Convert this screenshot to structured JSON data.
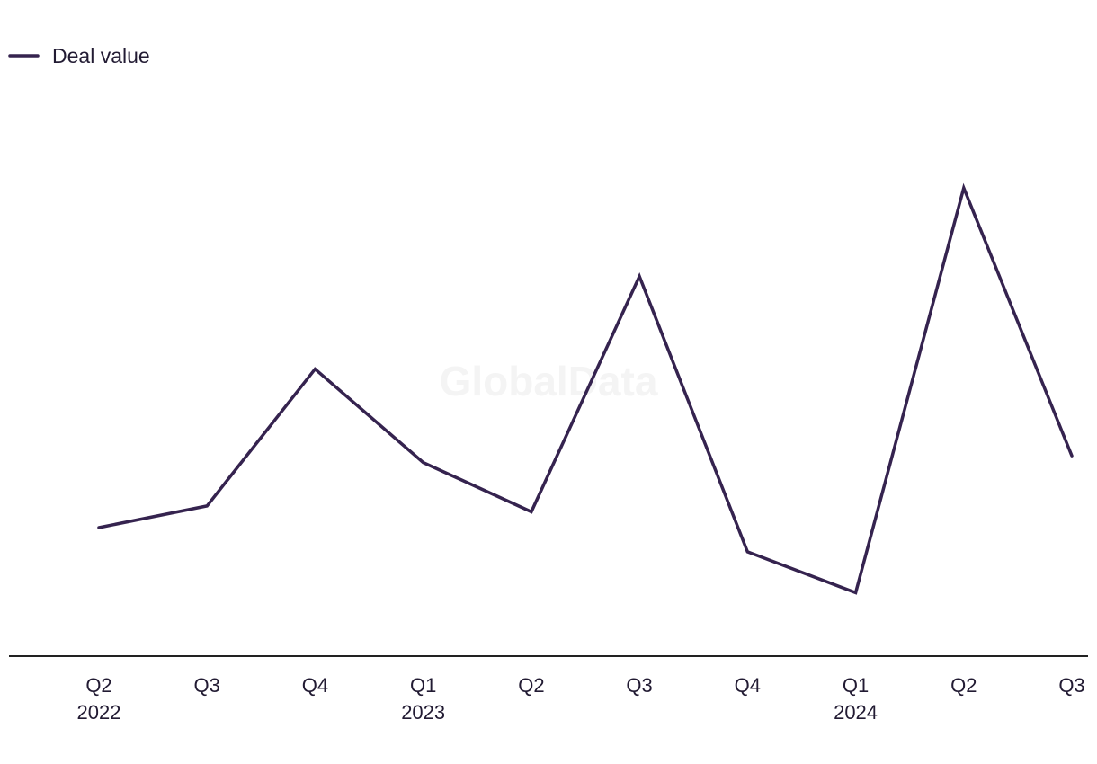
{
  "chart_data": {
    "type": "line",
    "title": "",
    "xlabel": "",
    "ylabel": "",
    "x": [
      {
        "quarter": "Q2",
        "year": "2022"
      },
      {
        "quarter": "Q3",
        "year": ""
      },
      {
        "quarter": "Q4",
        "year": ""
      },
      {
        "quarter": "Q1",
        "year": "2023"
      },
      {
        "quarter": "Q2",
        "year": ""
      },
      {
        "quarter": "Q3",
        "year": ""
      },
      {
        "quarter": "Q4",
        "year": ""
      },
      {
        "quarter": "Q1",
        "year": "2024"
      },
      {
        "quarter": "Q2",
        "year": ""
      },
      {
        "quarter": "Q3",
        "year": ""
      }
    ],
    "series": [
      {
        "name": "Deal value",
        "color": "#35234f",
        "values": [
          1.54,
          1.8,
          3.44,
          2.32,
          1.73,
          4.55,
          1.25,
          0.76,
          5.61,
          2.4
        ]
      }
    ],
    "ylim": [
      0,
      7
    ],
    "y_axis_visible": false,
    "grid": false,
    "legend": "top-left",
    "watermark": "GlobalData"
  }
}
